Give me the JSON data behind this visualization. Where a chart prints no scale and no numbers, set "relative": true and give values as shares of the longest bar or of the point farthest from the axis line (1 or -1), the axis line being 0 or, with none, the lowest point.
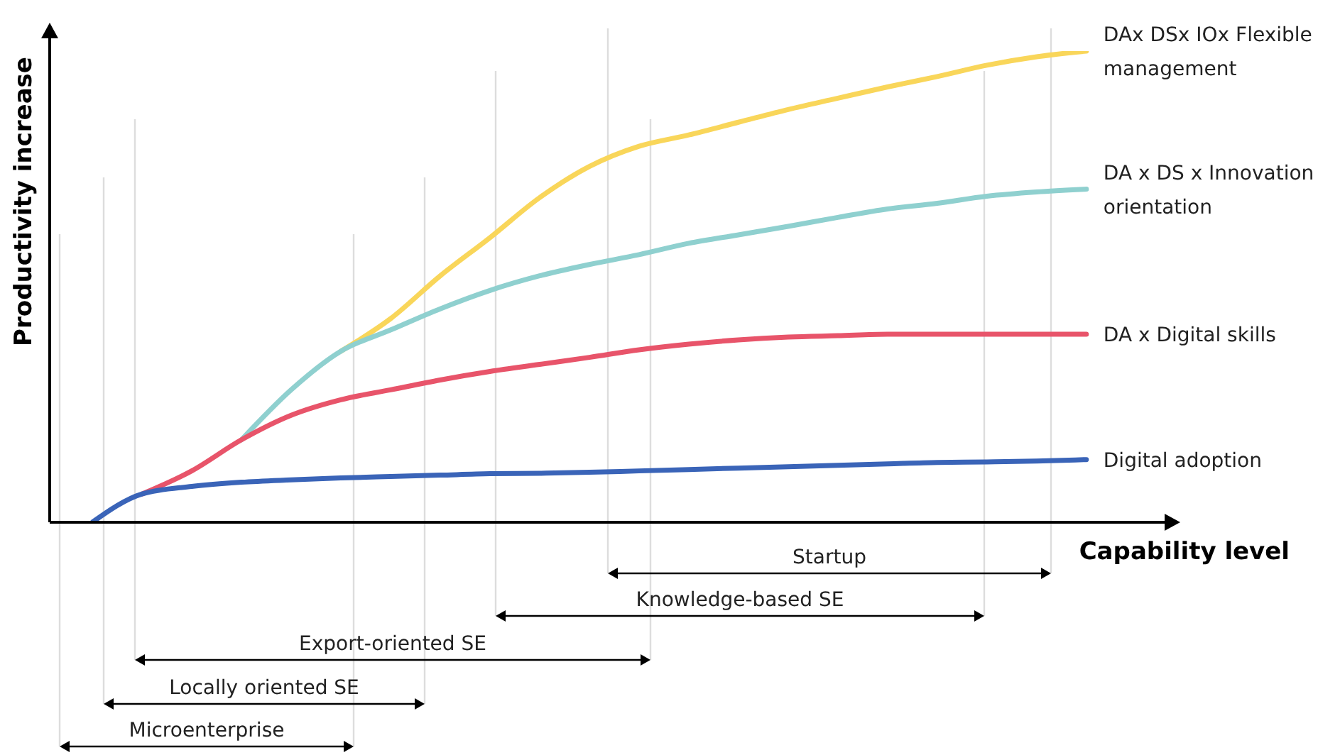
{
  "chart_data": {
    "type": "line",
    "relative": true,
    "xlabel": "Capability level",
    "ylabel": "Productivity increase",
    "categories": [
      null,
      null,
      null,
      null,
      null,
      null,
      null,
      null,
      null,
      null,
      null,
      null,
      null,
      null,
      null,
      null,
      null,
      null,
      null,
      null,
      null
    ],
    "series": [
      {
        "name": "DAx DSx IOx Flexible management",
        "color": "#f9d65a",
        "values": [
          null,
          null,
          null,
          null,
          null,
          0.363,
          0.432,
          0.523,
          0.604,
          0.689,
          0.755,
          0.798,
          0.822,
          0.849,
          0.876,
          0.9,
          0.924,
          0.946,
          0.97,
          0.988,
          1
        ]
      },
      {
        "name": "DA x DS x Innovation orientation",
        "color": "#8fd0cf",
        "values": [
          null,
          null,
          null,
          0.175,
          0.281,
          0.363,
          0.408,
          0.453,
          0.492,
          0.523,
          0.547,
          0.568,
          0.592,
          0.61,
          0.628,
          0.647,
          0.665,
          0.677,
          0.692,
          0.701,
          0.707
        ]
      },
      {
        "name": "DA x Digital skills",
        "color": "#e8546a",
        "values": [
          null,
          0.06,
          0.109,
          0.175,
          0.227,
          0.26,
          0.281,
          0.302,
          0.32,
          0.335,
          0.35,
          0.366,
          0.378,
          0.387,
          0.393,
          0.396,
          0.399,
          0.399,
          0.399,
          0.399,
          0.399
        ]
      },
      {
        "name": "Digital adoption",
        "color": "#3a64b8",
        "values": [
          0,
          0.06,
          0.076,
          0.085,
          0.09,
          0.094,
          0.097,
          0.1,
          0.103,
          0.104,
          0.106,
          0.109,
          0.112,
          0.115,
          0.118,
          0.121,
          0.124,
          0.127,
          0.128,
          0.13,
          0.133
        ]
      }
    ],
    "annotations": [
      "Startup",
      "Knowledge-based SE",
      "Export-oriented SE",
      "Locally oriented SE",
      "Microenterprise"
    ]
  }
}
